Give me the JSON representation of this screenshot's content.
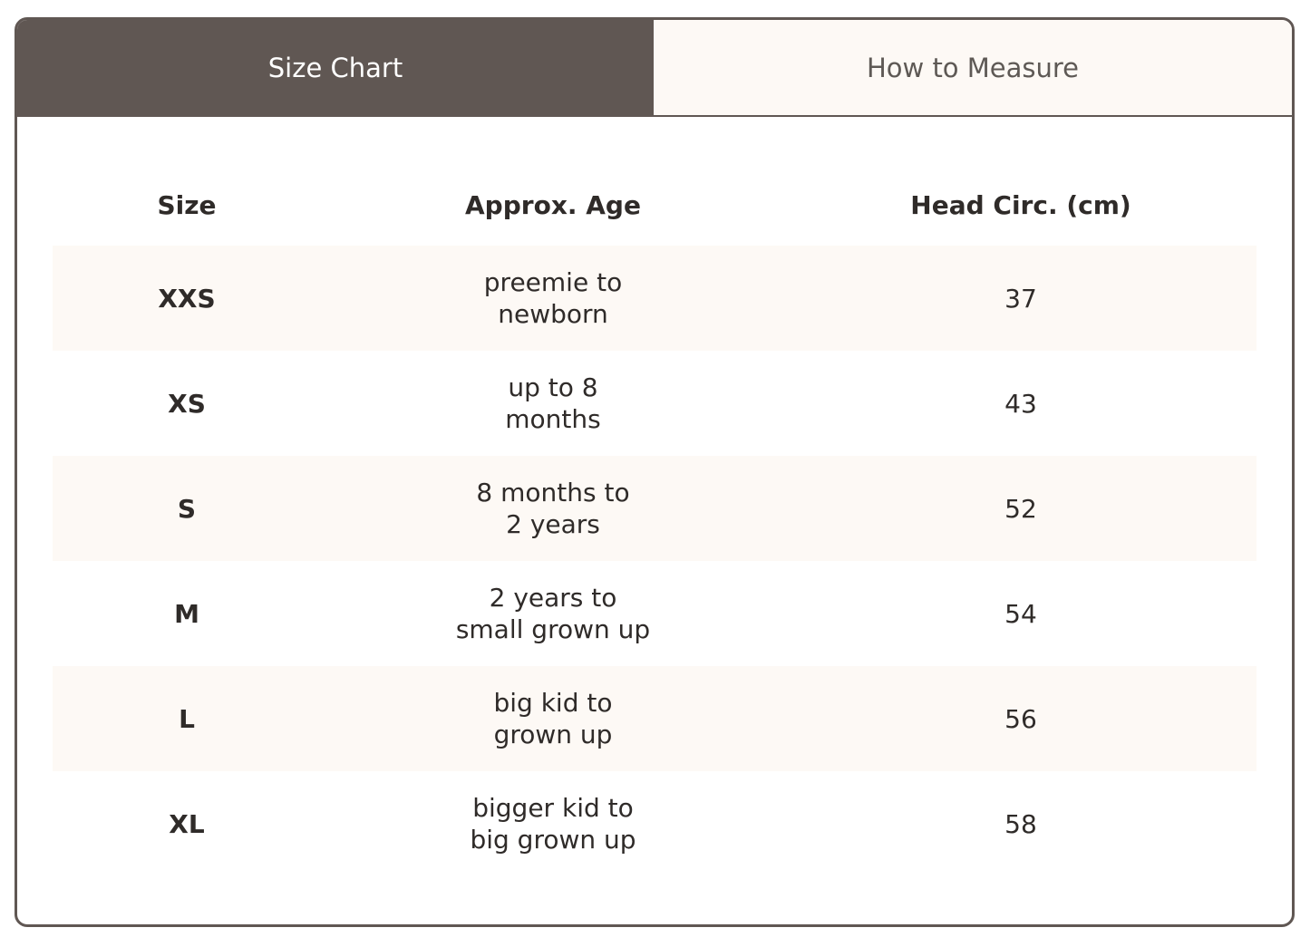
{
  "tabs": [
    {
      "label": "Size Chart",
      "active": true
    },
    {
      "label": "How to Measure",
      "active": false
    }
  ],
  "table": {
    "headers": [
      "Size",
      "Approx. Age",
      "Head Circ. (cm)"
    ],
    "rows": [
      {
        "size": "XXS",
        "age": [
          "preemie to",
          "newborn"
        ],
        "head": "37"
      },
      {
        "size": "XS",
        "age": [
          "up to 8",
          "months"
        ],
        "head": "43"
      },
      {
        "size": "S",
        "age": [
          "8 months to",
          "2 years"
        ],
        "head": "52"
      },
      {
        "size": "M",
        "age": [
          "2 years to",
          "small grown up"
        ],
        "head": "54"
      },
      {
        "size": "L",
        "age": [
          "big kid to",
          "grown up"
        ],
        "head": "56"
      },
      {
        "size": "XL",
        "age": [
          "bigger kid to",
          "big grown up"
        ],
        "head": "58"
      }
    ]
  },
  "colors": {
    "accent": "#605753",
    "row_stripe": "#fdf9f5"
  }
}
